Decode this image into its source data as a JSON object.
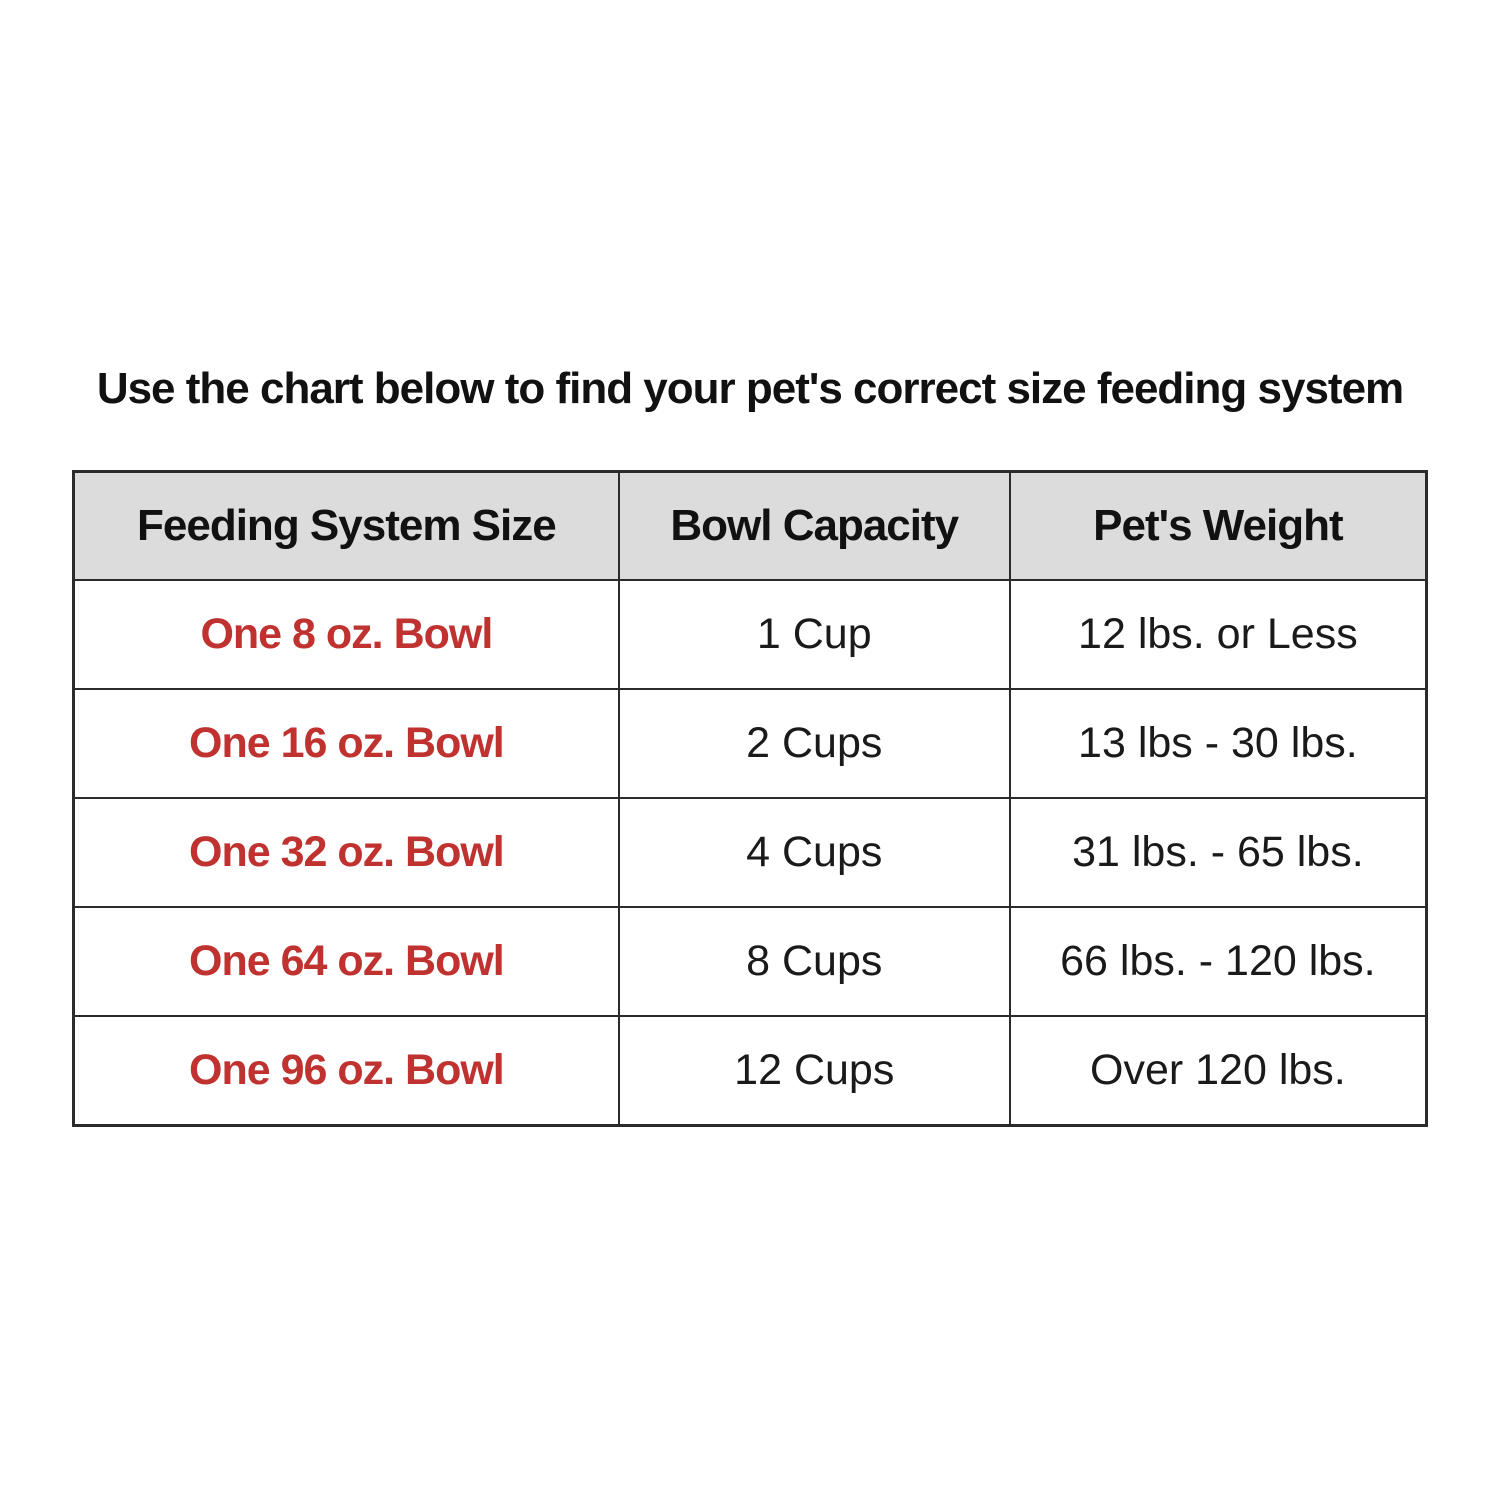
{
  "title": "Use the chart below to find your pet's correct size feeding system",
  "colors": {
    "accent_red": "#bf322f",
    "header_background": "#dcdcdc",
    "table_border": "#2b2b2b",
    "text_black": "#1a1a1a",
    "page_background": "#ffffff"
  },
  "chart_data": {
    "type": "table",
    "title": "Use the chart below to find your pet's correct size feeding system",
    "columns": [
      "Feeding System Size",
      "Bowl Capacity",
      "Pet's Weight"
    ],
    "rows": [
      {
        "size": "One 8 oz. Bowl",
        "capacity": "1 Cup",
        "weight": "12 lbs. or Less"
      },
      {
        "size": "One 16 oz. Bowl",
        "capacity": "2 Cups",
        "weight": "13 lbs - 30 lbs."
      },
      {
        "size": "One 32 oz. Bowl",
        "capacity": "4 Cups",
        "weight": "31 lbs. - 65 lbs."
      },
      {
        "size": "One 64 oz. Bowl",
        "capacity": "8 Cups",
        "weight": "66 lbs. - 120 lbs."
      },
      {
        "size": "One 96 oz. Bowl",
        "capacity": "12 Cups",
        "weight": "Over 120 lbs."
      }
    ],
    "layout": {
      "header_background": "#dcdcdc",
      "size_column_color": "#bf322f",
      "grid": true
    }
  }
}
